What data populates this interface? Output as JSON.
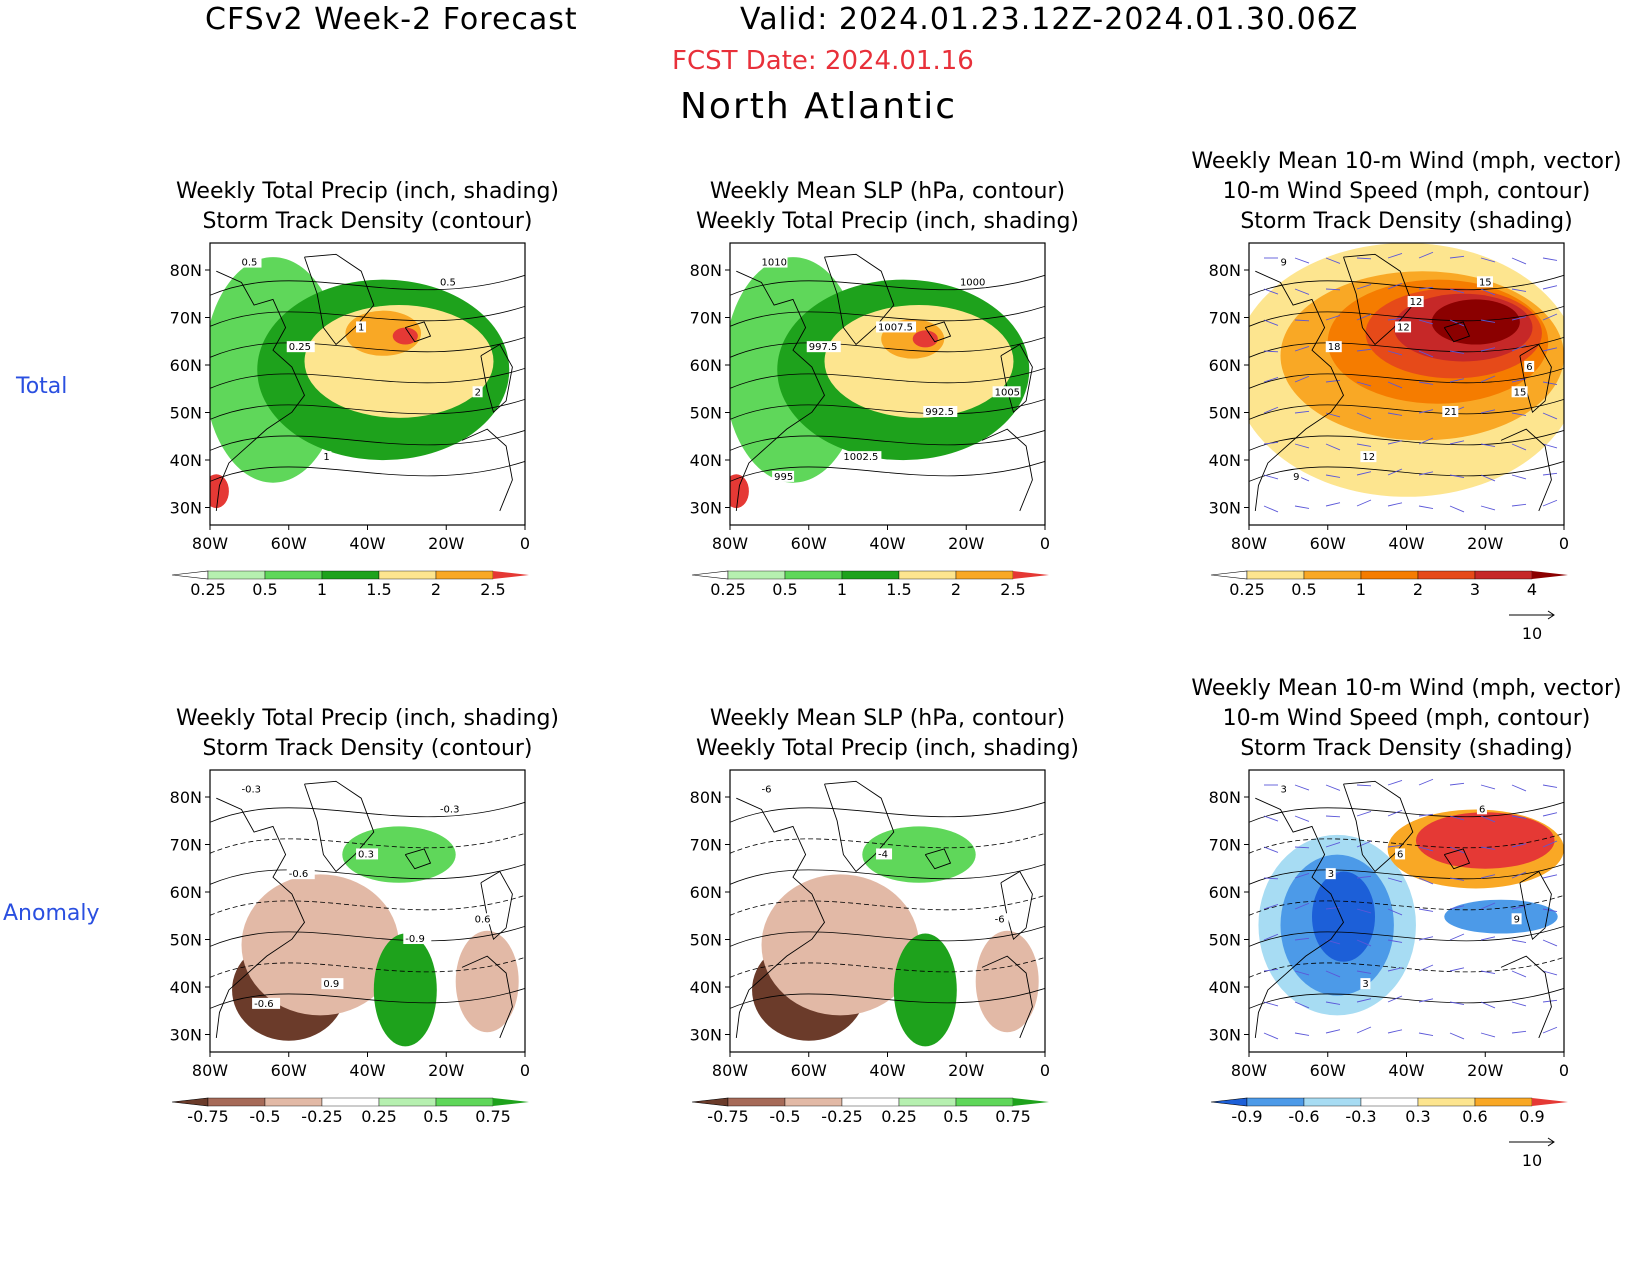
{
  "header": {
    "title": "CFSv2 Week-2 Forecast",
    "valid": "Valid: 2024.01.23.12Z-2024.01.30.06Z",
    "fcst_date": "FCST Date: 2024.01.16",
    "region": "North Atlantic"
  },
  "row_labels": {
    "total": "Total",
    "anomaly": "Anomaly"
  },
  "axes": {
    "lat_labels": [
      "80N",
      "70N",
      "60N",
      "50N",
      "40N",
      "30N"
    ],
    "lon_labels": [
      "80W",
      "60W",
      "40W",
      "20W",
      "0"
    ]
  },
  "colors": {
    "precip": [
      "#ffffff",
      "#b6f0b0",
      "#5fd75a",
      "#1ea21c",
      "#fde58f",
      "#f9a825",
      "#e53935"
    ],
    "track_total": [
      "#ffffff",
      "#fde58f",
      "#f9a825",
      "#f57c00",
      "#e64a19",
      "#c62828",
      "#8b0000"
    ],
    "precip_anom": [
      "#6b3b2a",
      "#a66a58",
      "#e2b9a6",
      "#ffffff",
      "#b6f0b0",
      "#5fd75a",
      "#1ea21c"
    ],
    "track_anom": [
      "#1c5fd8",
      "#4c9ae8",
      "#a7dcf3",
      "#ffffff",
      "#fde58f",
      "#f9a825",
      "#e53935"
    ],
    "vector": "#5b57d8",
    "contour": "#000000"
  },
  "panels": [
    {
      "id": "total-precip",
      "title_lines": [
        "Weekly Total Precip (inch, shading)",
        "Storm Track Density (contour)"
      ],
      "colorbar": {
        "palette": "precip",
        "labels": [
          "0.25",
          "0.5",
          "1",
          "1.5",
          "2",
          "2.5"
        ]
      },
      "contour_labels": [
        "0.5",
        "1",
        "2",
        "1",
        "0.5",
        "0.25"
      ]
    },
    {
      "id": "total-slp",
      "title_lines": [
        "Weekly Mean SLP (hPa, contour)",
        "Weekly Total Precip (inch, shading)"
      ],
      "colorbar": {
        "palette": "precip",
        "labels": [
          "0.25",
          "0.5",
          "1",
          "1.5",
          "2",
          "2.5"
        ]
      },
      "contour_labels": [
        "1010",
        "1007.5",
        "1005",
        "1002.5",
        "1000",
        "997.5",
        "992.5",
        "995"
      ]
    },
    {
      "id": "total-wind",
      "title_lines": [
        "Weekly Mean 10-m Wind (mph, vector)",
        "10-m Wind Speed (mph, contour)",
        "Storm Track Density (shading)"
      ],
      "colorbar": {
        "palette": "track_total",
        "labels": [
          "0.25",
          "0.5",
          "1",
          "2",
          "3",
          "4"
        ]
      },
      "contour_labels": [
        "9",
        "12",
        "15",
        "12",
        "15",
        "18",
        "21",
        "9",
        "12",
        "6"
      ],
      "vector_ref": "10"
    },
    {
      "id": "anom-precip",
      "title_lines": [
        "Weekly Total Precip (inch, shading)",
        "Storm Track Density (contour)"
      ],
      "colorbar": {
        "palette": "precip_anom",
        "labels": [
          "-0.75",
          "-0.5",
          "-0.25",
          "0.25",
          "0.5",
          "0.75"
        ]
      },
      "contour_labels": [
        "-0.3",
        "0.3",
        "0.6",
        "0.9",
        "-0.3",
        "-0.6",
        "-0.9",
        "-0.6"
      ]
    },
    {
      "id": "anom-slp",
      "title_lines": [
        "Weekly Mean SLP (hPa, contour)",
        "Weekly Total Precip (inch, shading)"
      ],
      "colorbar": {
        "palette": "precip_anom",
        "labels": [
          "-0.75",
          "-0.5",
          "-0.25",
          "0.25",
          "0.5",
          "0.75"
        ]
      },
      "contour_labels": [
        "-6",
        "-4",
        "-6"
      ]
    },
    {
      "id": "anom-wind",
      "title_lines": [
        "Weekly Mean 10-m Wind (mph, vector)",
        "10-m Wind Speed (mph, contour)",
        "Storm Track Density (shading)"
      ],
      "colorbar": {
        "palette": "track_anom",
        "labels": [
          "-0.9",
          "-0.6",
          "-0.3",
          "0.3",
          "0.6",
          "0.9"
        ]
      },
      "contour_labels": [
        "3",
        "6",
        "9",
        "3",
        "6",
        "3"
      ],
      "vector_ref": "10"
    }
  ]
}
